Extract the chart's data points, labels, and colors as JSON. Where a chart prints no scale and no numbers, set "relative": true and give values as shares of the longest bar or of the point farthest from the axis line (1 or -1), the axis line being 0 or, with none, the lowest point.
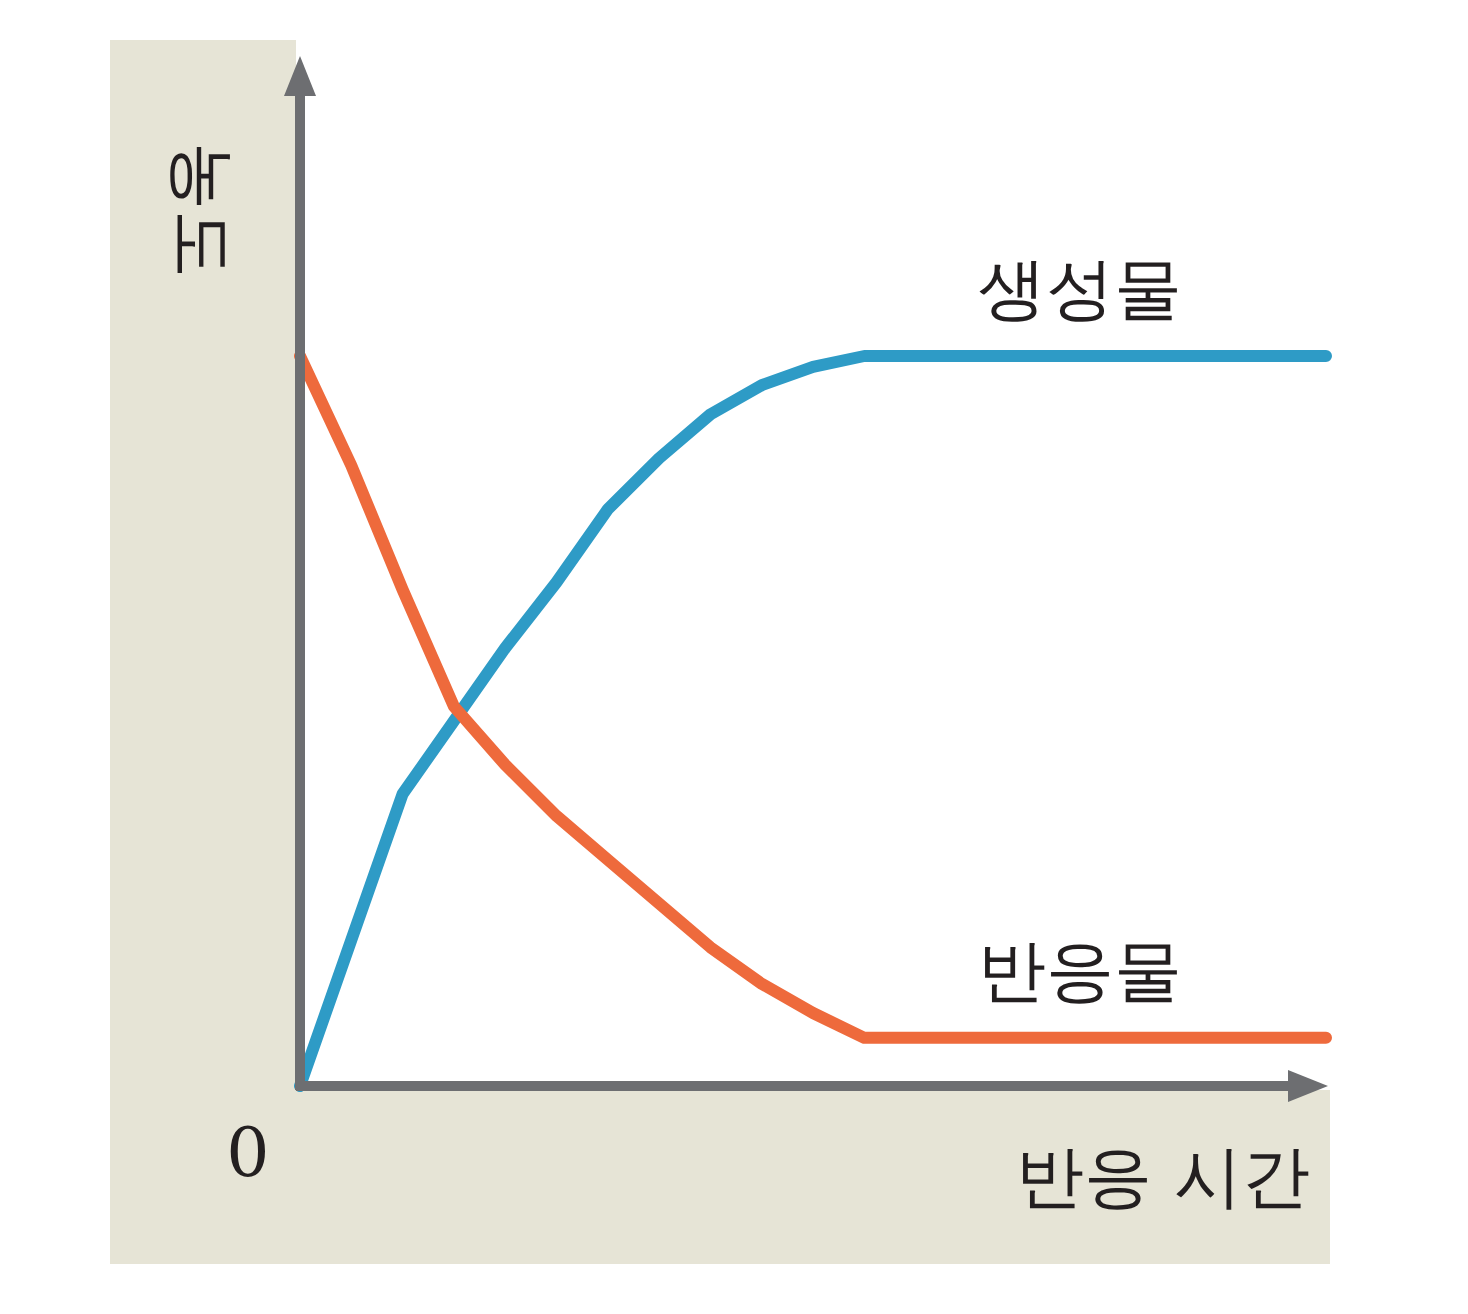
{
  "chart_data": {
    "type": "line",
    "relative": true,
    "xlabel": "반응 시간",
    "ylabel": "농도",
    "annotations": [
      "0"
    ],
    "categories": [
      null,
      null,
      null,
      null,
      null,
      null,
      null,
      null,
      null,
      null,
      null,
      null,
      null,
      null,
      null,
      null,
      null,
      null,
      null,
      null,
      null
    ],
    "series": [
      {
        "name": "생성물",
        "color": "#2e9bc6",
        "values": [
          0,
          0.2,
          0.4,
          0.5,
          0.6,
          0.69,
          0.79,
          0.86,
          0.92,
          0.96,
          0.985,
          1,
          1,
          1,
          1,
          1,
          1,
          1,
          1,
          1,
          1
        ]
      },
      {
        "name": "반응물",
        "color": "#ee6a3c",
        "values": [
          1,
          0.85,
          0.68,
          0.52,
          0.44,
          0.37,
          0.31,
          0.25,
          0.19,
          0.14,
          0.1,
          0.066,
          0.066,
          0.066,
          0.066,
          0.066,
          0.066,
          0.066,
          0.066,
          0.066,
          0.066
        ]
      }
    ]
  }
}
